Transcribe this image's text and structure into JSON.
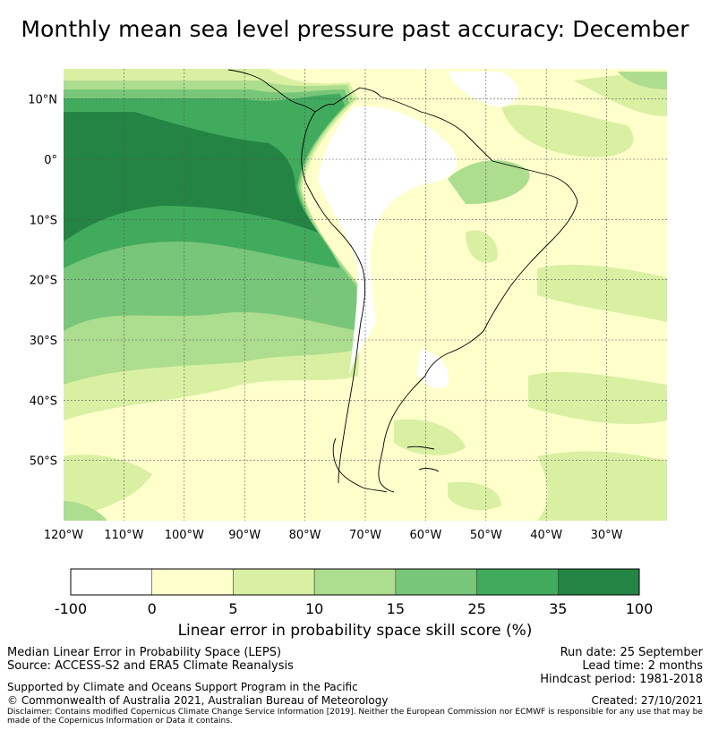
{
  "title": "Monthly mean sea level pressure past accuracy: December",
  "map": {
    "lon_ticks": [
      "120°W",
      "110°W",
      "100°W",
      "90°W",
      "80°W",
      "70°W",
      "60°W",
      "50°W",
      "40°W",
      "30°W"
    ],
    "lat_ticks": [
      "10°N",
      "0°",
      "10°S",
      "20°S",
      "30°S",
      "40°S",
      "50°S"
    ],
    "lon_range": [
      -120,
      -20
    ],
    "lat_range": [
      -60,
      15
    ]
  },
  "legend": {
    "title": "Linear error in probability space skill score (%)",
    "ticks": [
      "-100",
      "0",
      "5",
      "10",
      "15",
      "25",
      "35",
      "100"
    ],
    "colors": [
      "#ffffff",
      "#ffffcc",
      "#d9f0a3",
      "#addd8e",
      "#78c679",
      "#41ab5d",
      "#238443"
    ]
  },
  "footer": {
    "left_1": "Median Linear Error in Probability Space (LEPS)",
    "left_2": "Source: ACCESS-S2 and ERA5 Climate Reanalysis",
    "left_3": "Supported by Climate and Oceans Support Program in the Pacific",
    "left_4": "© Commonwealth of Australia 2021, Australian Bureau of Meteorology",
    "right_1": "Run date: 25 September",
    "right_2": "Lead time: 2 months",
    "right_3": "Hindcast period: 1981-2018",
    "right_4": "Created: 27/10/2021",
    "disclaimer": "Disclaimer: Contains modified Copernicus Climate Change Service Information [2019]. Neither the European Commission nor ECMWF is responsible for any use that may be made of the Copernicus Information or Data it contains."
  }
}
